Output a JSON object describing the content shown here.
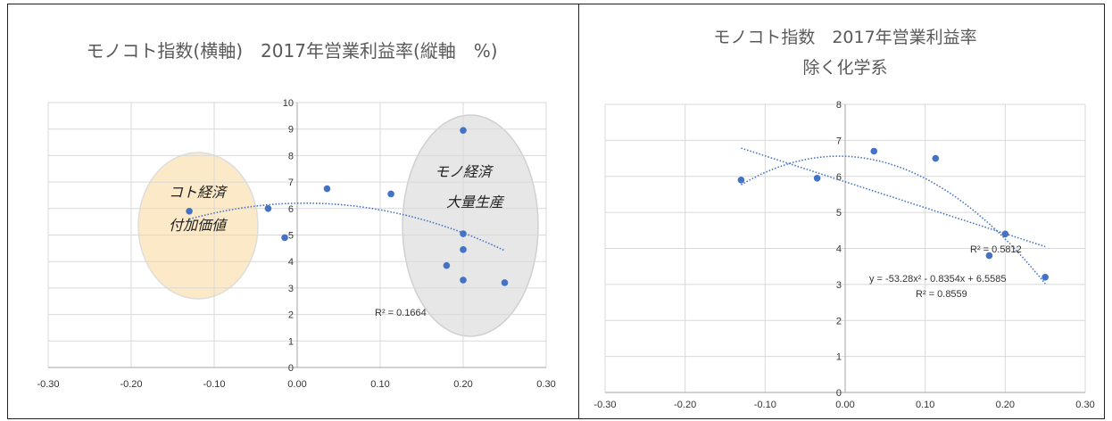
{
  "chart_data": [
    {
      "type": "scatter",
      "title": "モノコト指数(横軸)　2017年営業利益率(縦軸　%)",
      "xlim": [
        -0.3,
        0.3
      ],
      "ylim": [
        0,
        10
      ],
      "x_ticks": [
        "-0.30",
        "-0.20",
        "-0.10",
        "0.00",
        "0.10",
        "0.20",
        "0.30"
      ],
      "y_ticks": [
        "0",
        "1",
        "2",
        "3",
        "4",
        "5",
        "6",
        "7",
        "8",
        "9",
        "10"
      ],
      "grid": true,
      "series": [
        {
          "points": [
            {
              "x": -0.13,
              "y": 5.9
            },
            {
              "x": -0.035,
              "y": 6.0
            },
            {
              "x": -0.015,
              "y": 4.9
            },
            {
              "x": 0.036,
              "y": 6.75
            },
            {
              "x": 0.113,
              "y": 6.55
            },
            {
              "x": 0.18,
              "y": 3.85
            },
            {
              "x": 0.2,
              "y": 8.95
            },
            {
              "x": 0.2,
              "y": 5.05
            },
            {
              "x": 0.2,
              "y": 4.45
            },
            {
              "x": 0.2,
              "y": 3.3
            },
            {
              "x": 0.25,
              "y": 3.2
            }
          ],
          "color": "#4472C4"
        }
      ],
      "trendlines": [
        {
          "kind": "poly2",
          "coeffs": [
            -31.0,
            0.6,
            6.2
          ],
          "x_range": [
            -0.13,
            0.25
          ],
          "r_squared_label": "R² = 0.1664"
        }
      ],
      "annotations": [
        {
          "lines": [
            "コト経済",
            "付加価値"
          ],
          "fill": "#FCE9C7"
        },
        {
          "lines": [
            "モノ経済",
            "大量生産"
          ],
          "fill": "#E7E7E7"
        }
      ]
    },
    {
      "type": "scatter",
      "title": "モノコト指数　2017年営業利益率",
      "subtitle": "除く化学系",
      "xlim": [
        -0.3,
        0.3
      ],
      "ylim": [
        0,
        8
      ],
      "x_ticks": [
        "-0.30",
        "-0.20",
        "-0.10",
        "0.00",
        "0.10",
        "0.20",
        "0.30"
      ],
      "y_ticks": [
        "0",
        "1",
        "2",
        "3",
        "4",
        "5",
        "6",
        "7",
        "8"
      ],
      "grid": true,
      "series": [
        {
          "points": [
            {
              "x": -0.13,
              "y": 5.9
            },
            {
              "x": -0.035,
              "y": 5.95
            },
            {
              "x": 0.036,
              "y": 6.7
            },
            {
              "x": 0.113,
              "y": 6.5
            },
            {
              "x": 0.18,
              "y": 3.8
            },
            {
              "x": 0.2,
              "y": 4.4
            },
            {
              "x": 0.25,
              "y": 3.2
            }
          ],
          "color": "#4472C4"
        }
      ],
      "trendlines": [
        {
          "kind": "linear",
          "coeffs": [
            -7.2,
            5.85
          ],
          "x_range": [
            -0.13,
            0.25
          ],
          "r_squared_label": "R² = 0.5812"
        },
        {
          "kind": "poly2",
          "coeffs": [
            -53.28,
            -0.8354,
            6.5585
          ],
          "x_range": [
            -0.13,
            0.25
          ],
          "equation_label": "y = -53.28x² - 0.8354x + 6.5585",
          "r_squared_label": "R² = 0.8559"
        }
      ]
    }
  ]
}
